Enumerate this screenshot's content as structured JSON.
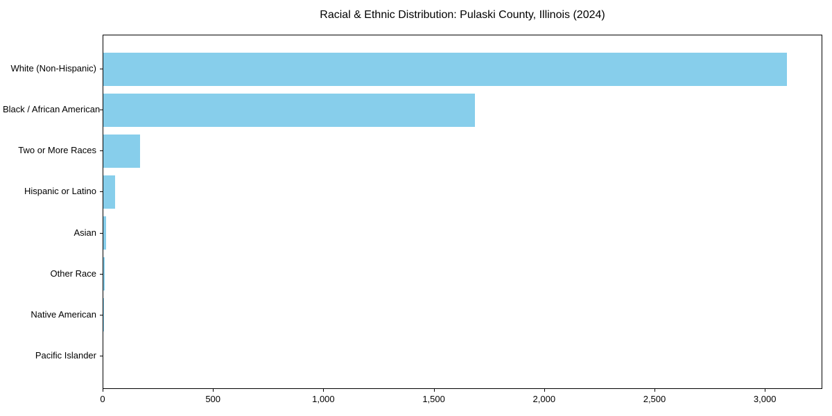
{
  "chart_data": {
    "type": "bar",
    "orientation": "horizontal",
    "title": "Racial & Ethnic Distribution: Pulaski County, Illinois (2024)",
    "categories": [
      "White (Non-Hispanic)",
      "Black / African American",
      "Two or More Races",
      "Hispanic or Latino",
      "Asian",
      "Other Race",
      "Native American",
      "Pacific Islander"
    ],
    "values": [
      3103,
      1686,
      168,
      55,
      12,
      5,
      3,
      0
    ],
    "xlabel": "",
    "ylabel": "",
    "xlim": [
      0,
      3260
    ],
    "x_ticks": [
      0,
      500,
      1000,
      1500,
      2000,
      2500,
      3000
    ],
    "x_tick_labels": [
      "0",
      "500",
      "1,000",
      "1,500",
      "2,000",
      "2,500",
      "3,000"
    ],
    "bar_color": "#87CEEB",
    "axis_color": "#000000",
    "background_color": "#ffffff",
    "grid": false,
    "legend": null
  }
}
